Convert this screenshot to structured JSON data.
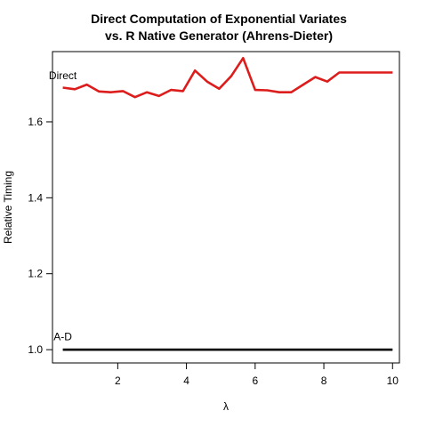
{
  "chart_data": {
    "type": "line",
    "title": [
      "Direct Computation of Exponential Variates",
      "vs. R Native Generator (Ahrens-Dieter)"
    ],
    "xlabel": "λ",
    "ylabel": "Relative Timing",
    "xlim": [
      0.1,
      10.2
    ],
    "ylim": [
      0.965,
      1.785
    ],
    "x_ticks": [
      2,
      4,
      6,
      8,
      10
    ],
    "y_ticks": [
      1.0,
      1.2,
      1.4,
      1.6
    ],
    "y_tick_labels": [
      "1.0",
      "1.2",
      "1.4",
      "1.6"
    ],
    "grid": false,
    "series": [
      {
        "name": "Direct",
        "color": "#dd1c1c",
        "label_at": {
          "x": 0.4,
          "y": 1.712
        },
        "x": [
          0.4,
          0.75,
          1.1,
          1.45,
          1.8,
          2.15,
          2.5,
          2.85,
          3.2,
          3.55,
          3.9,
          4.25,
          4.6,
          4.95,
          5.3,
          5.65,
          6.0,
          6.35,
          6.7,
          7.05,
          7.4,
          7.75,
          8.1,
          8.45,
          8.8,
          9.15,
          9.5,
          9.85,
          10.0
        ],
        "values": [
          1.69,
          1.686,
          1.698,
          1.68,
          1.678,
          1.681,
          1.665,
          1.678,
          1.668,
          1.684,
          1.681,
          1.735,
          1.706,
          1.687,
          1.72,
          1.768,
          1.684,
          1.683,
          1.678,
          1.678,
          1.698,
          1.718,
          1.706,
          1.73,
          1.73,
          1.73,
          1.73,
          1.73,
          1.73
        ]
      },
      {
        "name": "A-D",
        "color": "#000000",
        "label_at": {
          "x": 0.4,
          "y": 1.025
        },
        "x": [
          0.4,
          10.0
        ],
        "values": [
          1.0,
          1.0
        ]
      }
    ]
  }
}
